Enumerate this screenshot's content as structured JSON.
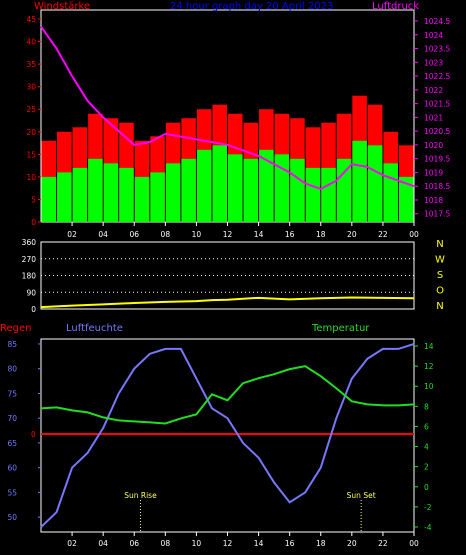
{
  "title": "24 hour graph day  20 April 2023",
  "panels": {
    "wind": {
      "left_label": "Windstärke",
      "right_label": "Luftdruck"
    },
    "direction": {
      "compass": [
        "N",
        "W",
        "S",
        "O",
        "N"
      ]
    },
    "climate": {
      "left_label": "Regen",
      "mid_label": "Luftfeuchte",
      "right_label": "Temperatur",
      "annotations": [
        "Sun Rise",
        "Sun Set"
      ]
    }
  },
  "colors": {
    "wind_gust": "#ff0000",
    "wind_avg": "#00ff00",
    "pressure": "#ff00ff",
    "direction": "#ffff00",
    "humidity": "#7777ff",
    "temperature": "#22dd22",
    "rain": "#ff0000",
    "axis": "#ffffff",
    "title": "#0000ff"
  },
  "chart_data": [
    {
      "type": "bar",
      "panel": "wind",
      "title": "24 hour graph day  20 April 2023",
      "x_ticks": [
        "02",
        "04",
        "06",
        "08",
        "10",
        "12",
        "14",
        "16",
        "18",
        "20",
        "22",
        "00"
      ],
      "y_left_ticks": [
        "0",
        "5",
        "10",
        "15",
        "20",
        "25",
        "30",
        "35",
        "40",
        "45"
      ],
      "y_left_range": [
        0,
        47
      ],
      "y_right_ticks": [
        "1017.5",
        "1018",
        "1018.5",
        "1019",
        "1019.5",
        "1020",
        "1020.5",
        "1021",
        "1021.5",
        "1022",
        "1022.5",
        "1023",
        "1023.5",
        "1024",
        "1024.5"
      ],
      "y_right_range": [
        1017.2,
        1024.9
      ],
      "series": [
        {
          "name": "Windstärke",
          "axis": "left",
          "x_hours": [
            0,
            1,
            2,
            3,
            4,
            5,
            6,
            7,
            8,
            9,
            10,
            11,
            12,
            13,
            14,
            15,
            16,
            17,
            18,
            19,
            20,
            21,
            22,
            23,
            24
          ],
          "gust": [
            18,
            20,
            21,
            24,
            23,
            22,
            18,
            19,
            22,
            23,
            25,
            26,
            24,
            22,
            25,
            24,
            23,
            21,
            22,
            24,
            28,
            26,
            20,
            17,
            15
          ],
          "avg": [
            10,
            11,
            12,
            14,
            13,
            12,
            10,
            11,
            13,
            14,
            16,
            17,
            15,
            14,
            16,
            15,
            14,
            12,
            12,
            14,
            18,
            17,
            13,
            10,
            8
          ]
        },
        {
          "name": "Luftdruck",
          "axis": "right",
          "x_hours": [
            0,
            1,
            2,
            3,
            4,
            5,
            6,
            7,
            8,
            9,
            10,
            11,
            12,
            13,
            14,
            15,
            16,
            17,
            18,
            19,
            20,
            21,
            22,
            23,
            24
          ],
          "values": [
            1024.3,
            1023.5,
            1022.5,
            1021.6,
            1021.0,
            1020.5,
            1020.0,
            1020.1,
            1020.4,
            1020.3,
            1020.2,
            1020.1,
            1020.0,
            1019.8,
            1019.6,
            1019.3,
            1019.0,
            1018.6,
            1018.4,
            1018.7,
            1019.3,
            1019.2,
            1018.9,
            1018.7,
            1018.5
          ]
        }
      ]
    },
    {
      "type": "line",
      "panel": "direction",
      "x_ticks": [
        "02",
        "04",
        "06",
        "08",
        "10",
        "12",
        "14",
        "16",
        "18",
        "20",
        "22",
        "00"
      ],
      "y_ticks": [
        "0",
        "90",
        "180",
        "270",
        "360"
      ],
      "y_range": [
        0,
        360
      ],
      "series": [
        {
          "name": "direction",
          "x_hours": [
            0,
            2,
            4,
            6,
            8,
            10,
            11,
            12,
            14,
            16,
            18,
            20,
            22,
            24
          ],
          "values": [
            10,
            18,
            25,
            32,
            38,
            42,
            48,
            50,
            60,
            52,
            58,
            62,
            60,
            58
          ]
        }
      ]
    },
    {
      "type": "line",
      "panel": "climate",
      "x_ticks": [
        "02",
        "04",
        "06",
        "08",
        "10",
        "12",
        "14",
        "16",
        "18",
        "20",
        "22",
        "00"
      ],
      "y_left_ticks": [
        "50",
        "55",
        "60",
        "65",
        "70",
        "75",
        "80",
        "85"
      ],
      "y_left_range": [
        47,
        86
      ],
      "y_right_ticks": [
        "-4",
        "-2",
        "0",
        "2",
        "4",
        "6",
        "8",
        "10",
        "12",
        "14"
      ],
      "y_right_range": [
        -4.5,
        14.7
      ],
      "series": [
        {
          "name": "Luftfeuchte",
          "axis": "left",
          "x_hours": [
            0,
            1,
            2,
            3,
            4,
            5,
            6,
            7,
            8,
            9,
            10,
            11,
            12,
            13,
            14,
            15,
            16,
            17,
            18,
            19,
            20,
            21,
            22,
            23,
            24
          ],
          "values": [
            48,
            51,
            60,
            63,
            68,
            75,
            80,
            83,
            84,
            84,
            78,
            72,
            70,
            65,
            62,
            57,
            53,
            55,
            60,
            70,
            78,
            82,
            84,
            84,
            85
          ]
        },
        {
          "name": "Temperatur",
          "axis": "right",
          "x_hours": [
            0,
            1,
            2,
            3,
            4,
            5,
            6,
            7,
            8,
            9,
            10,
            11,
            12,
            13,
            14,
            15,
            16,
            17,
            18,
            19,
            20,
            21,
            22,
            23,
            24
          ],
          "values": [
            7.8,
            7.9,
            7.6,
            7.4,
            6.9,
            6.6,
            6.5,
            6.4,
            6.3,
            6.8,
            7.2,
            9.2,
            8.6,
            10.3,
            10.8,
            11.2,
            11.7,
            12.0,
            11.0,
            9.8,
            8.5,
            8.2,
            8.1,
            8.1,
            8.2
          ]
        },
        {
          "name": "Regen",
          "axis": "left",
          "constant": true,
          "label": "0"
        }
      ]
    }
  ]
}
